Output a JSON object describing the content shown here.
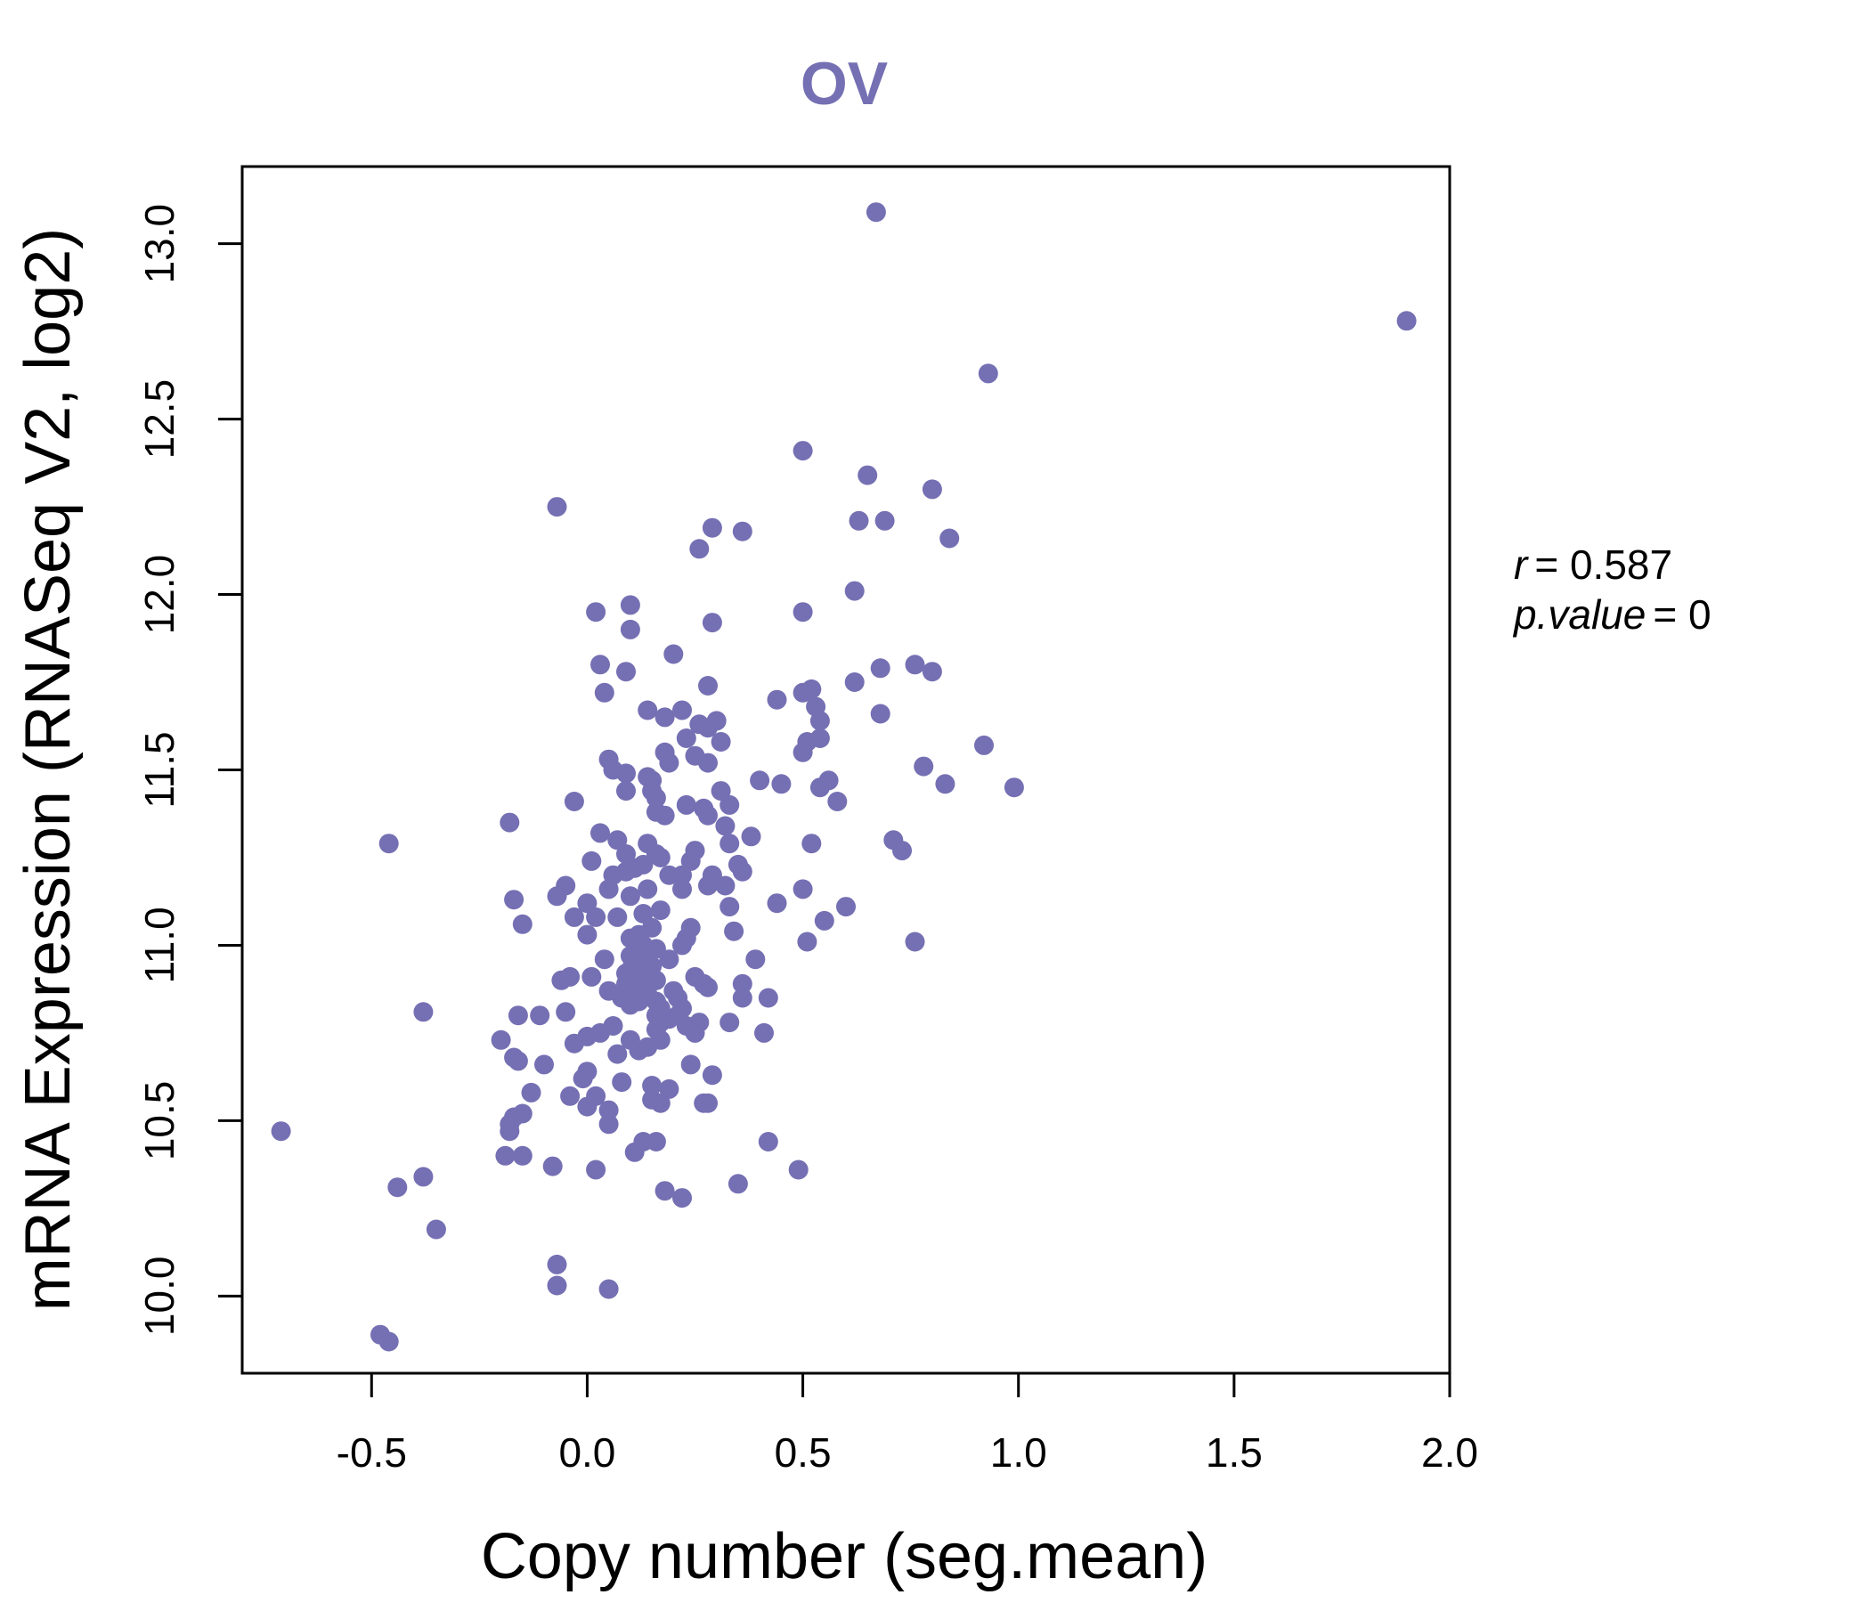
{
  "colors": {
    "accent": "#7570B3",
    "axis": "#000000"
  },
  "chart_data": {
    "type": "scatter",
    "title": "OV",
    "xlabel": "Copy number (seg.mean)",
    "ylabel": "mRNA Expression (RNASeq V2, log2)",
    "xlim": [
      -0.8,
      2.0
    ],
    "ylim": [
      9.78,
      13.22
    ],
    "xticks": [
      -0.5,
      0.0,
      0.5,
      1.0,
      1.5,
      2.0
    ],
    "xtick_labels": [
      "-0.5",
      "0.0",
      "0.5",
      "1.0",
      "1.5",
      "2.0"
    ],
    "yticks": [
      10.0,
      10.5,
      11.0,
      11.5,
      12.0,
      12.5,
      13.0
    ],
    "ytick_labels": [
      "10.0",
      "10.5",
      "11.0",
      "11.5",
      "12.0",
      "12.5",
      "13.0"
    ],
    "annotations": {
      "r_label": "r",
      "r_value": "= 0.587",
      "p_label": "p.value",
      "p_value": "= 0"
    },
    "points": [
      [
        0.67,
        13.09
      ],
      [
        1.9,
        12.78
      ],
      [
        0.93,
        12.63
      ],
      [
        0.5,
        12.41
      ],
      [
        0.65,
        12.34
      ],
      [
        0.8,
        12.3
      ],
      [
        -0.07,
        12.25
      ],
      [
        0.63,
        12.21
      ],
      [
        0.69,
        12.21
      ],
      [
        0.29,
        12.19
      ],
      [
        0.36,
        12.18
      ],
      [
        0.84,
        12.16
      ],
      [
        0.26,
        12.13
      ],
      [
        0.62,
        12.01
      ],
      [
        0.1,
        11.97
      ],
      [
        0.02,
        11.95
      ],
      [
        0.5,
        11.95
      ],
      [
        0.29,
        11.92
      ],
      [
        0.1,
        11.9
      ],
      [
        0.2,
        11.83
      ],
      [
        0.03,
        11.8
      ],
      [
        0.76,
        11.8
      ],
      [
        0.68,
        11.79
      ],
      [
        0.09,
        11.78
      ],
      [
        0.8,
        11.78
      ],
      [
        0.62,
        11.75
      ],
      [
        0.28,
        11.74
      ],
      [
        0.52,
        11.73
      ],
      [
        0.04,
        11.72
      ],
      [
        0.5,
        11.72
      ],
      [
        0.44,
        11.7
      ],
      [
        0.53,
        11.68
      ],
      [
        0.14,
        11.67
      ],
      [
        0.22,
        11.67
      ],
      [
        0.68,
        11.66
      ],
      [
        0.18,
        11.65
      ],
      [
        0.3,
        11.64
      ],
      [
        0.26,
        11.63
      ],
      [
        0.54,
        11.64
      ],
      [
        0.28,
        11.62
      ],
      [
        0.23,
        11.59
      ],
      [
        0.31,
        11.58
      ],
      [
        0.51,
        11.58
      ],
      [
        0.54,
        11.59
      ],
      [
        0.92,
        11.57
      ],
      [
        0.5,
        11.55
      ],
      [
        0.18,
        11.55
      ],
      [
        0.25,
        11.54
      ],
      [
        0.19,
        11.52
      ],
      [
        0.05,
        11.53
      ],
      [
        0.28,
        11.52
      ],
      [
        0.78,
        11.51
      ],
      [
        0.06,
        11.5
      ],
      [
        0.09,
        11.49
      ],
      [
        0.14,
        11.48
      ],
      [
        0.15,
        11.47
      ],
      [
        0.4,
        11.47
      ],
      [
        0.45,
        11.46
      ],
      [
        0.56,
        11.47
      ],
      [
        0.83,
        11.46
      ],
      [
        0.99,
        11.45
      ],
      [
        0.15,
        11.44
      ],
      [
        0.54,
        11.45
      ],
      [
        0.09,
        11.44
      ],
      [
        0.31,
        11.44
      ],
      [
        0.16,
        11.42
      ],
      [
        -0.03,
        11.41
      ],
      [
        0.58,
        11.41
      ],
      [
        0.23,
        11.4
      ],
      [
        0.27,
        11.39
      ],
      [
        0.33,
        11.4
      ],
      [
        0.16,
        11.38
      ],
      [
        0.28,
        11.37
      ],
      [
        0.18,
        11.37
      ],
      [
        0.32,
        11.34
      ],
      [
        -0.18,
        11.35
      ],
      [
        0.03,
        11.32
      ],
      [
        0.07,
        11.3
      ],
      [
        0.38,
        11.31
      ],
      [
        0.71,
        11.3
      ],
      [
        0.52,
        11.29
      ],
      [
        0.14,
        11.29
      ],
      [
        0.33,
        11.29
      ],
      [
        -0.46,
        11.29
      ],
      [
        0.73,
        11.27
      ],
      [
        0.09,
        11.26
      ],
      [
        0.16,
        11.26
      ],
      [
        0.25,
        11.27
      ],
      [
        0.17,
        11.25
      ],
      [
        0.01,
        11.24
      ],
      [
        0.24,
        11.24
      ],
      [
        0.11,
        11.22
      ],
      [
        0.13,
        11.23
      ],
      [
        0.35,
        11.23
      ],
      [
        0.09,
        11.21
      ],
      [
        0.06,
        11.2
      ],
      [
        0.19,
        11.2
      ],
      [
        0.22,
        11.2
      ],
      [
        0.29,
        11.2
      ],
      [
        0.36,
        11.21
      ],
      [
        -0.05,
        11.17
      ],
      [
        0.05,
        11.16
      ],
      [
        0.14,
        11.16
      ],
      [
        0.22,
        11.16
      ],
      [
        0.28,
        11.17
      ],
      [
        0.32,
        11.17
      ],
      [
        0.5,
        11.16
      ],
      [
        -0.07,
        11.14
      ],
      [
        0.1,
        11.14
      ],
      [
        -0.17,
        11.13
      ],
      [
        0.0,
        11.12
      ],
      [
        0.44,
        11.12
      ],
      [
        0.33,
        11.11
      ],
      [
        0.6,
        11.11
      ],
      [
        0.17,
        11.1
      ],
      [
        0.13,
        11.09
      ],
      [
        0.02,
        11.08
      ],
      [
        -0.03,
        11.08
      ],
      [
        0.07,
        11.08
      ],
      [
        0.55,
        11.07
      ],
      [
        -0.15,
        11.06
      ],
      [
        0.15,
        11.05
      ],
      [
        0.24,
        11.05
      ],
      [
        0.34,
        11.04
      ],
      [
        0.12,
        11.03
      ],
      [
        0.0,
        11.03
      ],
      [
        0.1,
        11.02
      ],
      [
        0.23,
        11.02
      ],
      [
        0.51,
        11.01
      ],
      [
        0.76,
        11.01
      ],
      [
        0.13,
        11.0
      ],
      [
        0.22,
        11.0
      ],
      [
        0.16,
        10.99
      ],
      [
        0.11,
        10.98
      ],
      [
        0.1,
        10.97
      ],
      [
        0.14,
        10.96
      ],
      [
        0.04,
        10.96
      ],
      [
        0.19,
        10.96
      ],
      [
        0.39,
        10.96
      ],
      [
        0.12,
        10.95
      ],
      [
        0.15,
        10.94
      ],
      [
        0.1,
        10.93
      ],
      [
        0.13,
        10.93
      ],
      [
        0.09,
        10.92
      ],
      [
        0.12,
        10.92
      ],
      [
        0.01,
        10.91
      ],
      [
        0.25,
        10.91
      ],
      [
        -0.06,
        10.9
      ],
      [
        -0.04,
        10.91
      ],
      [
        0.16,
        10.9
      ],
      [
        0.27,
        10.89
      ],
      [
        0.09,
        10.89
      ],
      [
        0.36,
        10.89
      ],
      [
        0.28,
        10.88
      ],
      [
        0.14,
        10.88
      ],
      [
        0.11,
        10.87
      ],
      [
        0.05,
        10.87
      ],
      [
        0.2,
        10.87
      ],
      [
        0.14,
        10.86
      ],
      [
        0.08,
        10.85
      ],
      [
        0.21,
        10.85
      ],
      [
        0.36,
        10.85
      ],
      [
        0.42,
        10.85
      ],
      [
        0.16,
        10.84
      ],
      [
        0.12,
        10.84
      ],
      [
        0.1,
        10.83
      ],
      [
        0.22,
        10.82
      ],
      [
        0.17,
        10.82
      ],
      [
        -0.05,
        10.81
      ],
      [
        -0.38,
        10.81
      ],
      [
        0.16,
        10.8
      ],
      [
        -0.16,
        10.8
      ],
      [
        0.21,
        10.8
      ],
      [
        -0.11,
        10.8
      ],
      [
        0.19,
        10.79
      ],
      [
        0.17,
        10.78
      ],
      [
        0.26,
        10.78
      ],
      [
        0.33,
        10.78
      ],
      [
        0.06,
        10.77
      ],
      [
        0.23,
        10.77
      ],
      [
        0.16,
        10.76
      ],
      [
        0.25,
        10.75
      ],
      [
        0.41,
        10.75
      ],
      [
        0.03,
        10.75
      ],
      [
        0.0,
        10.74
      ],
      [
        -0.2,
        10.73
      ],
      [
        0.1,
        10.73
      ],
      [
        0.17,
        10.73
      ],
      [
        -0.03,
        10.72
      ],
      [
        0.14,
        10.71
      ],
      [
        0.12,
        10.7
      ],
      [
        0.07,
        10.69
      ],
      [
        -0.17,
        10.68
      ],
      [
        -0.16,
        10.67
      ],
      [
        0.24,
        10.66
      ],
      [
        -0.1,
        10.66
      ],
      [
        0.0,
        10.64
      ],
      [
        0.29,
        10.63
      ],
      [
        -0.01,
        10.62
      ],
      [
        0.08,
        10.61
      ],
      [
        0.15,
        10.6
      ],
      [
        0.19,
        10.59
      ],
      [
        -0.13,
        10.58
      ],
      [
        -0.04,
        10.57
      ],
      [
        0.02,
        10.57
      ],
      [
        0.15,
        10.56
      ],
      [
        0.27,
        10.55
      ],
      [
        0.28,
        10.55
      ],
      [
        0.17,
        10.55
      ],
      [
        0.0,
        10.54
      ],
      [
        0.05,
        10.53
      ],
      [
        -0.15,
        10.52
      ],
      [
        -0.17,
        10.51
      ],
      [
        0.05,
        10.49
      ],
      [
        -0.18,
        10.49
      ],
      [
        -0.18,
        10.47
      ],
      [
        -0.71,
        10.47
      ],
      [
        0.13,
        10.44
      ],
      [
        0.16,
        10.44
      ],
      [
        0.42,
        10.44
      ],
      [
        0.11,
        10.41
      ],
      [
        -0.19,
        10.4
      ],
      [
        -0.15,
        10.4
      ],
      [
        -0.08,
        10.37
      ],
      [
        0.02,
        10.36
      ],
      [
        0.49,
        10.36
      ],
      [
        -0.38,
        10.34
      ],
      [
        -0.44,
        10.31
      ],
      [
        0.35,
        10.32
      ],
      [
        0.18,
        10.3
      ],
      [
        0.22,
        10.28
      ],
      [
        -0.35,
        10.19
      ],
      [
        -0.07,
        10.09
      ],
      [
        -0.07,
        10.03
      ],
      [
        0.05,
        10.02
      ],
      [
        -0.48,
        9.89
      ],
      [
        -0.46,
        9.87
      ]
    ]
  }
}
